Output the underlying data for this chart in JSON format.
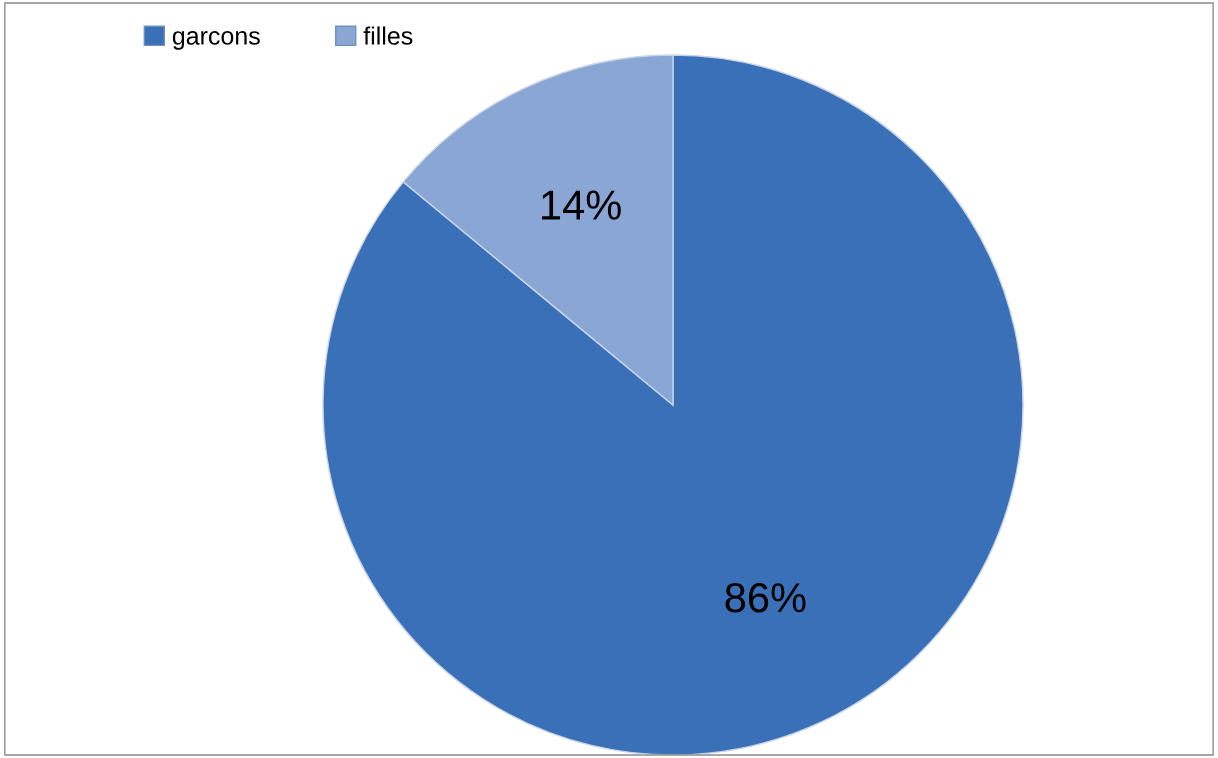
{
  "chart_data": {
    "type": "pie",
    "categories": [
      "garcons",
      "filles"
    ],
    "values": [
      86,
      14
    ],
    "colors": [
      "#3a70b8",
      "#8aa6d4"
    ],
    "value_labels": [
      "86%",
      "14%"
    ],
    "legend": "top left"
  }
}
